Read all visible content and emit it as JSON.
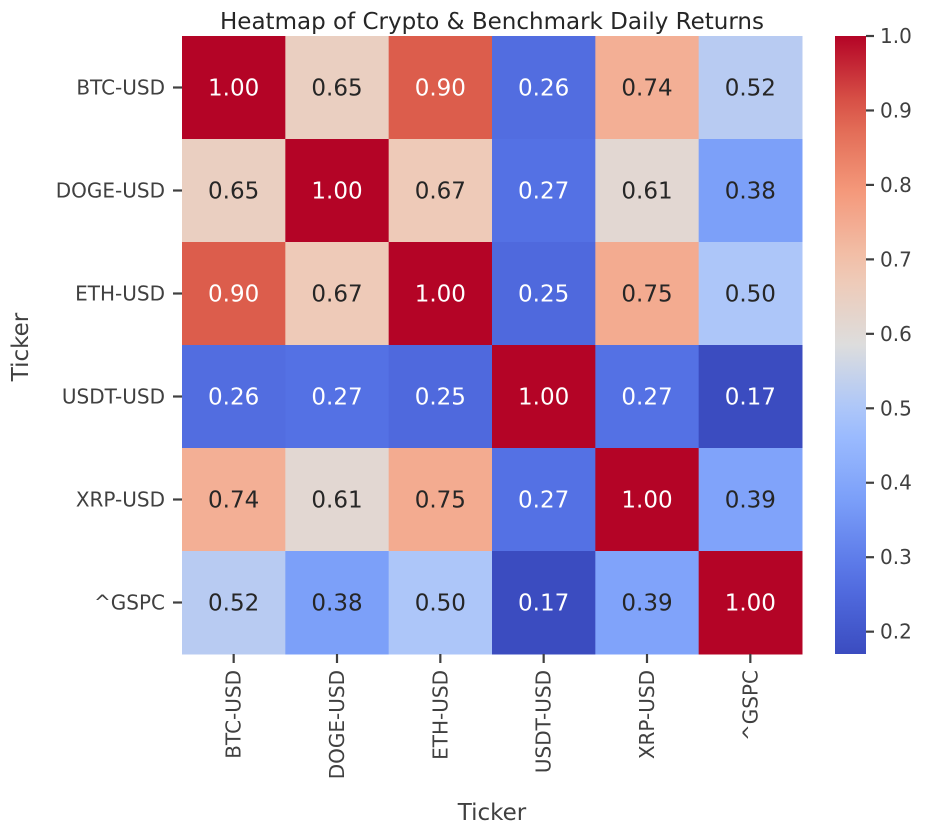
{
  "chart_data": {
    "type": "heatmap",
    "title": "Heatmap of Crypto & Benchmark Daily Returns",
    "xlabel": "Ticker",
    "ylabel": "Ticker",
    "x_categories": [
      "BTC-USD",
      "DOGE-USD",
      "ETH-USD",
      "USDT-USD",
      "XRP-USD",
      "^GSPC"
    ],
    "y_categories": [
      "BTC-USD",
      "DOGE-USD",
      "ETH-USD",
      "USDT-USD",
      "XRP-USD",
      "^GSPC"
    ],
    "values": [
      [
        1.0,
        0.65,
        0.9,
        0.26,
        0.74,
        0.52
      ],
      [
        0.65,
        1.0,
        0.67,
        0.27,
        0.61,
        0.38
      ],
      [
        0.9,
        0.67,
        1.0,
        0.25,
        0.75,
        0.5
      ],
      [
        0.26,
        0.27,
        0.25,
        1.0,
        0.27,
        0.17
      ],
      [
        0.74,
        0.61,
        0.75,
        0.27,
        1.0,
        0.39
      ],
      [
        0.52,
        0.38,
        0.5,
        0.17,
        0.39,
        1.0
      ]
    ],
    "value_format": "0.00",
    "colormap": "coolwarm",
    "vmin": 0.17,
    "vmax": 1.0,
    "colorbar": {
      "ticks": [
        0.2,
        0.3,
        0.4,
        0.5,
        0.6,
        0.7,
        0.8,
        0.9,
        1.0
      ],
      "tick_labels": [
        "0.2",
        "0.3",
        "0.4",
        "0.5",
        "0.6",
        "0.7",
        "0.8",
        "0.9",
        "1.0"
      ],
      "placement": "right"
    }
  }
}
